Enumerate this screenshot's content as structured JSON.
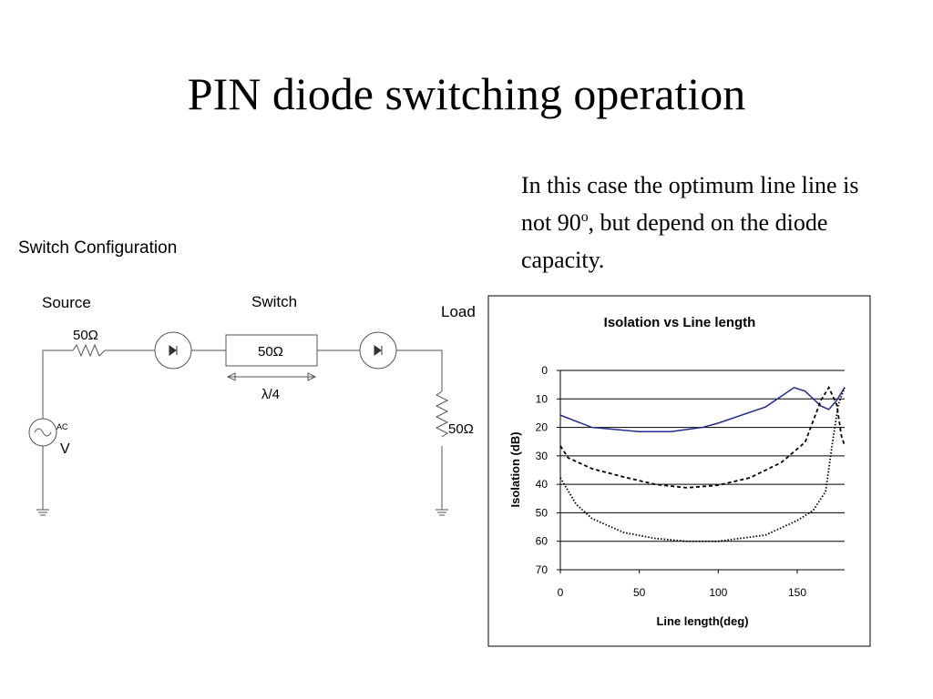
{
  "title": "PIN diode switching operation",
  "body": {
    "before": "In this case the optimum line line is not 90",
    "sup": "o",
    "after": ", but depend on the diode capacity."
  },
  "diagram": {
    "heading": "Switch Configuration",
    "source": "Source",
    "switch": "Switch",
    "load": "Load",
    "source_resistor": "50Ω",
    "line_impedance": "50Ω",
    "line_length": "λ/4",
    "load_resistor": "50Ω",
    "ac": "AC",
    "v": "V"
  },
  "chart_data": {
    "type": "line",
    "title": "Isolation vs Line length",
    "x_label": "Line length(deg)",
    "y_label": "Isolation (dB)",
    "xlim": [
      0,
      180
    ],
    "xticks": [
      0,
      50,
      100,
      150
    ],
    "ylim": [
      0,
      70
    ],
    "yticks": [
      0,
      10,
      20,
      30,
      40,
      50,
      60,
      70
    ],
    "y_inverted": true,
    "grid": true,
    "series": [
      {
        "color": "#1f2a8c",
        "dash": "solid",
        "x": [
          0,
          20,
          50,
          70,
          90,
          100,
          130,
          148,
          155,
          165,
          170,
          175,
          180
        ],
        "values": [
          15.7,
          20,
          21.5,
          21.5,
          20,
          18.5,
          12.8,
          6,
          7.3,
          12.5,
          13.7,
          10.5,
          6
        ]
      },
      {
        "color": "#000000",
        "dash": "dashed",
        "x": [
          0,
          5,
          20,
          40,
          60,
          80,
          100,
          120,
          140,
          155,
          165,
          170,
          175,
          178,
          180
        ],
        "values": [
          26.5,
          30.7,
          34.5,
          37.4,
          40,
          41.2,
          40.3,
          37.7,
          32.3,
          25.2,
          10.5,
          6,
          12,
          23,
          26.5
        ]
      },
      {
        "color": "#000000",
        "dash": "dotted",
        "x": [
          0,
          10,
          20,
          40,
          60,
          80,
          100,
          130,
          150,
          160,
          168,
          172,
          176,
          180
        ],
        "values": [
          37.7,
          47,
          52,
          56.9,
          59,
          60,
          60,
          57.8,
          52.7,
          49.2,
          42.5,
          26.5,
          12,
          6
        ]
      }
    ]
  }
}
